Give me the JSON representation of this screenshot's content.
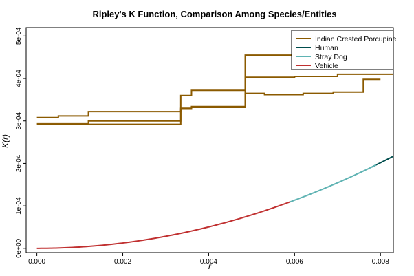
{
  "chart_data": {
    "type": "line",
    "title": "Ripley's K Function, Comparison Among Species/Entities",
    "xlabel": "r",
    "ylabel": "K(r)",
    "xlim": [
      -0.00025,
      0.0083
    ],
    "ylim": [
      -1e-05,
      0.00052
    ],
    "x_ticks": [
      0,
      0.002,
      0.004,
      0.006,
      0.008
    ],
    "x_tick_labels": [
      "0.000",
      "0.002",
      "0.004",
      "0.006",
      "0.008"
    ],
    "y_ticks": [
      0,
      0.0001,
      0.0002,
      0.0003,
      0.0004,
      0.0005
    ],
    "y_tick_labels": [
      "0e+00",
      "1e-04",
      "2e-04",
      "3e-04",
      "4e-04",
      "5e-04"
    ],
    "legend_position": "top-right",
    "grid": false,
    "series": [
      {
        "name": "Indian Crested Porcupine",
        "color": "#8B5A00",
        "style": "step",
        "lines": [
          {
            "points": [
              [
                0,
                0.000308
              ],
              [
                0.0005,
                0.000308
              ],
              [
                0.0005,
                0.000312
              ],
              [
                0.0012,
                0.000312
              ],
              [
                0.0012,
                0.000322
              ],
              [
                0.00335,
                0.000322
              ],
              [
                0.00335,
                0.00036
              ],
              [
                0.0036,
                0.00036
              ],
              [
                0.0036,
                0.000372
              ],
              [
                0.00485,
                0.000372
              ],
              [
                0.00485,
                0.000455
              ],
              [
                0.0063,
                0.000455
              ],
              [
                0.0063,
                0.000458
              ],
              [
                0.0083,
                0.000458
              ]
            ]
          },
          {
            "points": [
              [
                0,
                0.000295
              ],
              [
                0.0012,
                0.000295
              ],
              [
                0.0012,
                0.0003
              ],
              [
                0.00335,
                0.0003
              ],
              [
                0.00335,
                0.00033
              ],
              [
                0.0036,
                0.00033
              ],
              [
                0.0036,
                0.000332
              ],
              [
                0.00485,
                0.000332
              ],
              [
                0.00485,
                0.000403
              ],
              [
                0.006,
                0.000403
              ],
              [
                0.006,
                0.000405
              ],
              [
                0.007,
                0.000405
              ],
              [
                0.007,
                0.00041
              ],
              [
                0.0083,
                0.00041
              ]
            ]
          },
          {
            "points": [
              [
                0,
                0.000292
              ],
              [
                0.00335,
                0.000292
              ],
              [
                0.00335,
                0.000328
              ],
              [
                0.0036,
                0.000328
              ],
              [
                0.0036,
                0.000334
              ],
              [
                0.00485,
                0.000334
              ],
              [
                0.00485,
                0.000365
              ],
              [
                0.0053,
                0.000365
              ],
              [
                0.0053,
                0.000362
              ],
              [
                0.0062,
                0.000362
              ],
              [
                0.0062,
                0.000365
              ],
              [
                0.0069,
                0.000365
              ],
              [
                0.0069,
                0.000368
              ],
              [
                0.0076,
                0.000368
              ],
              [
                0.0076,
                0.000398
              ],
              [
                0.008,
                0.000398
              ]
            ]
          }
        ]
      },
      {
        "name": "Human",
        "color": "#004D4D",
        "style": "curve",
        "coef": 3.15,
        "x_range": [
          0.0078,
          0.0083
        ]
      },
      {
        "name": "Stray Dog",
        "color": "#5FB3B3",
        "style": "curve",
        "coef": 3.15,
        "x_range": [
          0.0059,
          0.0079
        ]
      },
      {
        "name": "Vehicle",
        "color": "#C03030",
        "style": "curve",
        "coef": 3.15,
        "x_range": [
          0,
          0.0059
        ]
      }
    ]
  }
}
